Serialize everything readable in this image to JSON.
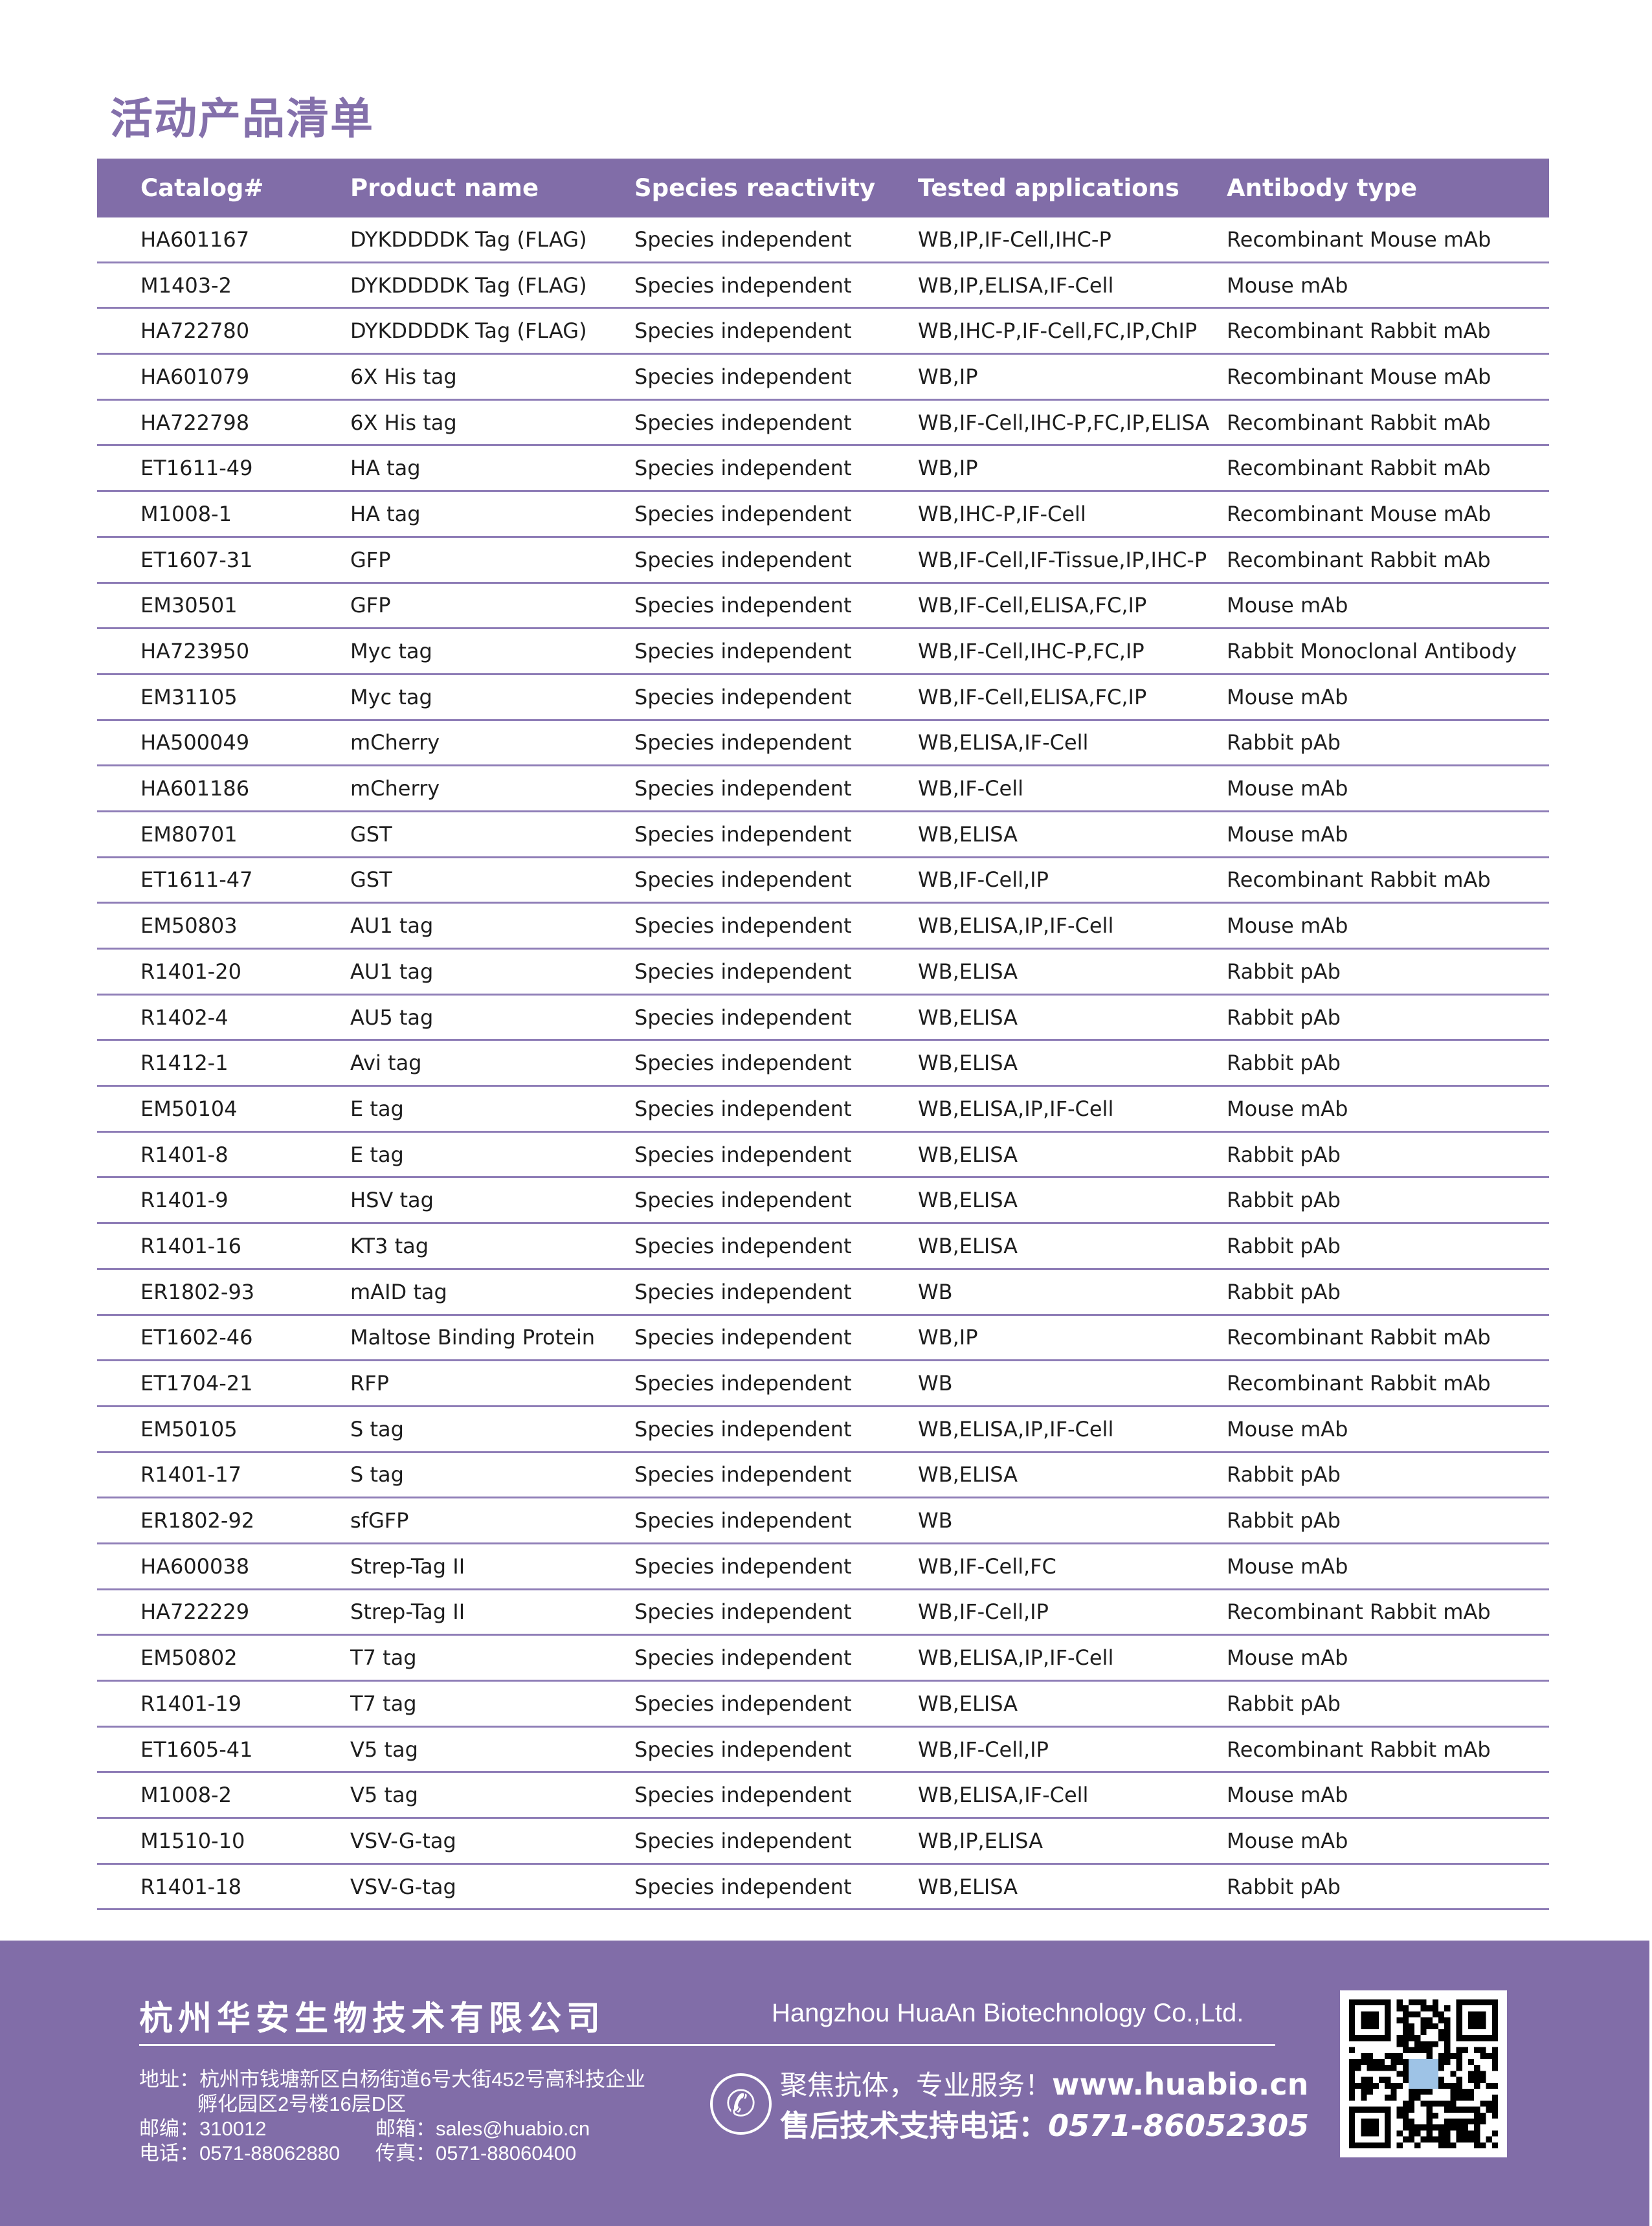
{
  "title": "活动产品清单",
  "table": {
    "headers": [
      "Catalog#",
      "Product name",
      "Species reactivity",
      "Tested applications",
      "Antibody type"
    ],
    "rows": [
      [
        "HA601167",
        "DYKDDDDK Tag (FLAG)",
        "Species independent",
        "WB,IP,IF-Cell,IHC-P",
        "Recombinant Mouse mAb"
      ],
      [
        "M1403-2",
        "DYKDDDDK Tag (FLAG)",
        "Species independent",
        "WB,IP,ELISA,IF-Cell",
        "Mouse mAb"
      ],
      [
        "HA722780",
        "DYKDDDDK Tag (FLAG)",
        "Species independent",
        "WB,IHC-P,IF-Cell,FC,IP,ChIP",
        "Recombinant Rabbit mAb"
      ],
      [
        "HA601079",
        "6X His tag",
        "Species independent",
        "WB,IP",
        "Recombinant Mouse mAb"
      ],
      [
        "HA722798",
        "6X His tag",
        "Species independent",
        "WB,IF-Cell,IHC-P,FC,IP,ELISA",
        "Recombinant Rabbit mAb"
      ],
      [
        "ET1611-49",
        "HA tag",
        "Species independent",
        "WB,IP",
        "Recombinant Rabbit mAb"
      ],
      [
        "M1008-1",
        "HA tag",
        "Species independent",
        "WB,IHC-P,IF-Cell",
        "Recombinant Mouse mAb"
      ],
      [
        "ET1607-31",
        "GFP",
        "Species independent",
        "WB,IF-Cell,IF-Tissue,IP,IHC-P",
        "Recombinant Rabbit mAb"
      ],
      [
        "EM30501",
        "GFP",
        "Species independent",
        "WB,IF-Cell,ELISA,FC,IP",
        "Mouse mAb"
      ],
      [
        "HA723950",
        "Myc tag",
        "Species independent",
        "WB,IF-Cell,IHC-P,FC,IP",
        "Rabbit Monoclonal Antibody"
      ],
      [
        "EM31105",
        "Myc tag",
        "Species independent",
        "WB,IF-Cell,ELISA,FC,IP",
        "Mouse mAb"
      ],
      [
        "HA500049",
        "mCherry",
        "Species independent",
        "WB,ELISA,IF-Cell",
        "Rabbit pAb"
      ],
      [
        "HA601186",
        "mCherry",
        "Species independent",
        "WB,IF-Cell",
        "Mouse mAb"
      ],
      [
        "EM80701",
        "GST",
        "Species independent",
        "WB,ELISA",
        "Mouse mAb"
      ],
      [
        "ET1611-47",
        "GST",
        "Species independent",
        "WB,IF-Cell,IP",
        "Recombinant Rabbit mAb"
      ],
      [
        "EM50803",
        "AU1 tag",
        "Species independent",
        "WB,ELISA,IP,IF-Cell",
        "Mouse mAb"
      ],
      [
        "R1401-20",
        "AU1 tag",
        "Species independent",
        "WB,ELISA",
        "Rabbit pAb"
      ],
      [
        "R1402-4",
        "AU5 tag",
        "Species independent",
        "WB,ELISA",
        "Rabbit pAb"
      ],
      [
        "R1412-1",
        "Avi tag",
        "Species independent",
        "WB,ELISA",
        "Rabbit pAb"
      ],
      [
        "EM50104",
        "E tag",
        "Species independent",
        "WB,ELISA,IP,IF-Cell",
        "Mouse mAb"
      ],
      [
        "R1401-8",
        "E tag",
        "Species independent",
        "WB,ELISA",
        "Rabbit pAb"
      ],
      [
        "R1401-9",
        "HSV tag",
        "Species independent",
        "WB,ELISA",
        "Rabbit pAb"
      ],
      [
        "R1401-16",
        "KT3 tag",
        "Species independent",
        "WB,ELISA",
        "Rabbit pAb"
      ],
      [
        "ER1802-93",
        "mAID tag",
        "Species independent",
        "WB",
        "Rabbit pAb"
      ],
      [
        "ET1602-46",
        "Maltose Binding Protein",
        "Species independent",
        "WB,IP",
        "Recombinant Rabbit mAb"
      ],
      [
        "ET1704-21",
        "RFP",
        "Species independent",
        "WB",
        "Recombinant Rabbit mAb"
      ],
      [
        "EM50105",
        "S tag",
        "Species independent",
        "WB,ELISA,IP,IF-Cell",
        "Mouse mAb"
      ],
      [
        "R1401-17",
        "S tag",
        "Species independent",
        "WB,ELISA",
        "Rabbit pAb"
      ],
      [
        "ER1802-92",
        "sfGFP",
        "Species independent",
        "WB",
        "Rabbit pAb"
      ],
      [
        "HA600038",
        "Strep-Tag II",
        "Species independent",
        "WB,IF-Cell,FC",
        "Mouse mAb"
      ],
      [
        "HA722229",
        "Strep-Tag II",
        "Species independent",
        "WB,IF-Cell,IP",
        "Recombinant Rabbit mAb"
      ],
      [
        "EM50802",
        "T7 tag",
        "Species independent",
        "WB,ELISA,IP,IF-Cell",
        "Mouse mAb"
      ],
      [
        "R1401-19",
        "T7 tag",
        "Species independent",
        "WB,ELISA",
        "Rabbit pAb"
      ],
      [
        "ET1605-41",
        "V5 tag",
        "Species independent",
        "WB,IF-Cell,IP",
        "Recombinant Rabbit mAb"
      ],
      [
        "M1008-2",
        "V5 tag",
        "Species independent",
        "WB,ELISA,IF-Cell",
        "Mouse mAb"
      ],
      [
        "M1510-10",
        "VSV-G-tag",
        "Species independent",
        "WB,IP,ELISA",
        "Mouse mAb"
      ],
      [
        "R1401-18",
        "VSV-G-tag",
        "Species independent",
        "WB,ELISA",
        "Rabbit pAb"
      ]
    ]
  },
  "footer": {
    "company_cn": "杭州华安生物技术有限公司",
    "company_en": "Hangzhou HuaAn Biotechnology Co.,Ltd.",
    "address_label": "地址：",
    "address_line1": "杭州市钱塘新区白杨街道6号大街452号高科技企业",
    "address_line2": "孵化园区2号楼16层D区",
    "postcode_label": "邮编：",
    "postcode": "310012",
    "email_label": "邮箱：",
    "email": "sales@huabio.cn",
    "phone_label": "电话：",
    "phone": "0571-88062880",
    "fax_label": "传真：",
    "fax": "0571-88060400",
    "slogan": "聚焦抗体，专业服务！",
    "website": "www.huabio.cn",
    "hotline_label": "售后技术支持电话：",
    "hotline": "0571-86052305",
    "icons": [
      "phone-icon",
      "qr-code"
    ]
  },
  "colors": {
    "accent": "#816da8",
    "title": "#8470ab",
    "row_border": "#8f7eb7"
  }
}
